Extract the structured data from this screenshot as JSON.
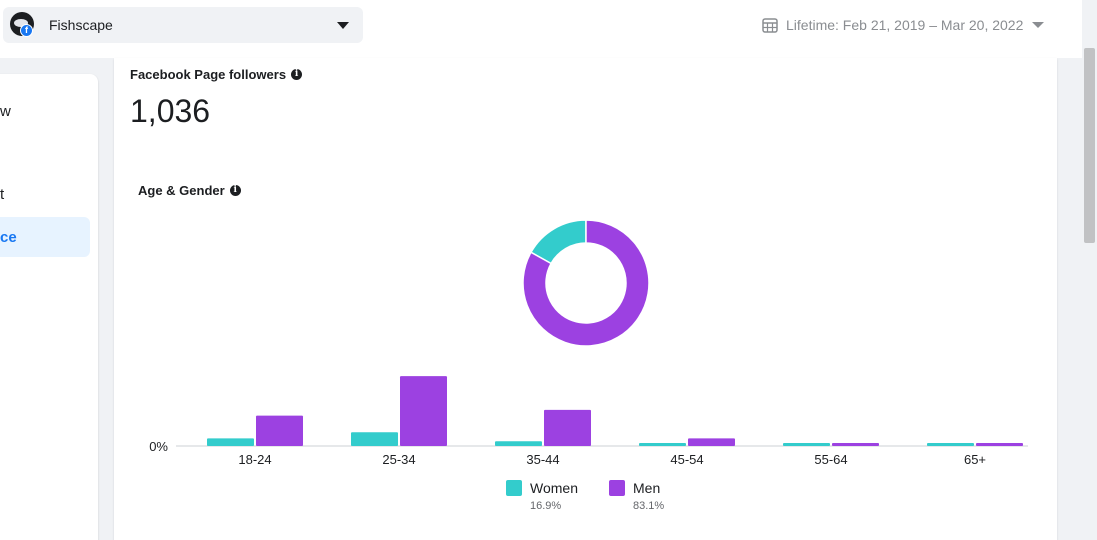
{
  "header": {
    "page_name": "Fishscape",
    "date_range": "Lifetime: Feb 21, 2019 – Mar 20, 2022",
    "fb_badge": "f"
  },
  "sidebar": {
    "items": [
      {
        "label": "w"
      },
      {
        "label": "t"
      },
      {
        "label": "ce"
      }
    ]
  },
  "followers": {
    "title": "Facebook Page followers",
    "value": "1,036",
    "info": "i"
  },
  "age_gender": {
    "title": "Age & Gender",
    "info": "i"
  },
  "colors": {
    "women": "#33cccc",
    "men": "#9c41e1",
    "accent": "#1877f2"
  },
  "legend": {
    "women_label": "Women",
    "women_pct": "16.9%",
    "men_label": "Men",
    "men_pct": "83.1%"
  },
  "chart_data": [
    {
      "type": "pie",
      "title": "",
      "labels": [
        "Women",
        "Men"
      ],
      "values": [
        16.9,
        83.1
      ],
      "donut": true
    },
    {
      "type": "bar",
      "title": "",
      "categories": [
        "18-24",
        "25-34",
        "35-44",
        "45-54",
        "55-64",
        "65+"
      ],
      "series": [
        {
          "name": "Women",
          "values": [
            1.6,
            2.9,
            1.0,
            0.6,
            0.5,
            0.5
          ]
        },
        {
          "name": "Men",
          "values": [
            6.4,
            14.7,
            7.6,
            1.6,
            0.6,
            0.6
          ]
        }
      ],
      "y_tick_label": "0%",
      "ylim": [
        0,
        16
      ],
      "grid": false,
      "legend": "bottom"
    }
  ]
}
